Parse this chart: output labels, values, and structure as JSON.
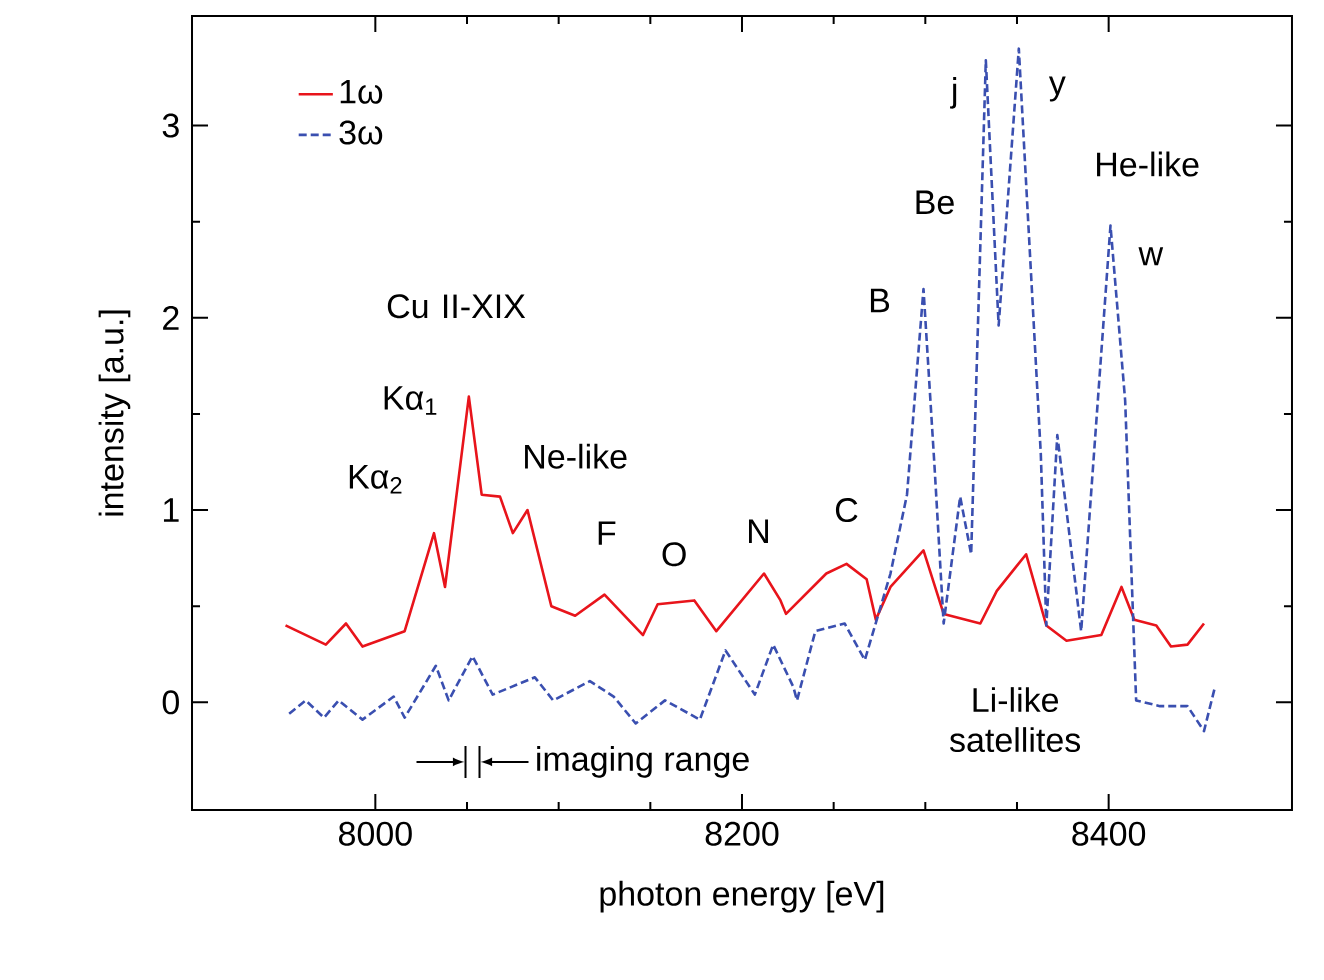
{
  "chart_data": {
    "type": "line",
    "xlabel": "photon energy [eV]",
    "ylabel": "intensity [a.u.]",
    "xlim": [
      7900,
      8500
    ],
    "ylim": [
      -0.56,
      3.57
    ],
    "xticks": [
      8000,
      8200,
      8400
    ],
    "yticks": [
      0,
      1,
      2,
      3
    ],
    "grid": false,
    "legend": "top left",
    "marker": "none",
    "series": [
      {
        "name": "1ω",
        "color": "#e8141b",
        "line_style": "solid",
        "x": [
          7951,
          7973,
          7984,
          7993,
          8016,
          8032,
          8038,
          8051,
          8058,
          8068,
          8075,
          8083,
          8096,
          8109,
          8125,
          8146,
          8154,
          8174,
          8186,
          8212,
          8221,
          8224,
          8246,
          8257,
          8268,
          8273,
          8281,
          8299,
          8310,
          8330,
          8339,
          8355,
          8366,
          8377,
          8396,
          8407,
          8414,
          8426,
          8434,
          8443,
          8452
        ],
        "values": [
          0.4,
          0.3,
          0.41,
          0.29,
          0.37,
          0.88,
          0.6,
          1.59,
          1.08,
          1.07,
          0.88,
          1.0,
          0.5,
          0.45,
          0.56,
          0.35,
          0.51,
          0.53,
          0.37,
          0.67,
          0.53,
          0.46,
          0.67,
          0.72,
          0.64,
          0.43,
          0.6,
          0.79,
          0.46,
          0.41,
          0.58,
          0.77,
          0.4,
          0.32,
          0.35,
          0.6,
          0.43,
          0.4,
          0.29,
          0.3,
          0.41
        ]
      },
      {
        "name": "3ω",
        "color": "#3a4fb0",
        "line_style": "dashed",
        "x": [
          7953,
          7962,
          7972,
          7980,
          7993,
          8010,
          8016,
          8033,
          8040,
          8053,
          8064,
          8087,
          8097,
          8117,
          8130,
          8142,
          8158,
          8177,
          8191,
          8207,
          8217,
          8228,
          8230,
          8240,
          8256,
          8267,
          8281,
          8290,
          8299,
          8305,
          8310,
          8319,
          8325,
          8333,
          8340,
          8351,
          8363,
          8366,
          8372,
          8385,
          8401,
          8409,
          8415,
          8428,
          8443,
          8452,
          8458
        ],
        "values": [
          -0.06,
          0.01,
          -0.08,
          0.01,
          -0.09,
          0.03,
          -0.08,
          0.19,
          0.01,
          0.24,
          0.04,
          0.13,
          0.01,
          0.11,
          0.03,
          -0.11,
          0.01,
          -0.09,
          0.27,
          0.04,
          0.3,
          0.08,
          0.01,
          0.37,
          0.41,
          0.22,
          0.67,
          1.08,
          2.15,
          1.23,
          0.41,
          1.07,
          0.77,
          3.34,
          1.96,
          3.4,
          1.29,
          0.4,
          1.39,
          0.37,
          2.48,
          1.57,
          0.01,
          -0.02,
          -0.02,
          -0.15,
          0.08
        ]
      }
    ],
    "annotations": [
      "Cu II-XIX",
      "Kα$_{1}$",
      "Kα$_{2}$",
      "Ne-like",
      "F",
      "O",
      "N",
      "C",
      "B",
      "Be",
      "j",
      "y",
      "He-like",
      "w",
      "Li-like satellites",
      "imaging range"
    ]
  }
}
